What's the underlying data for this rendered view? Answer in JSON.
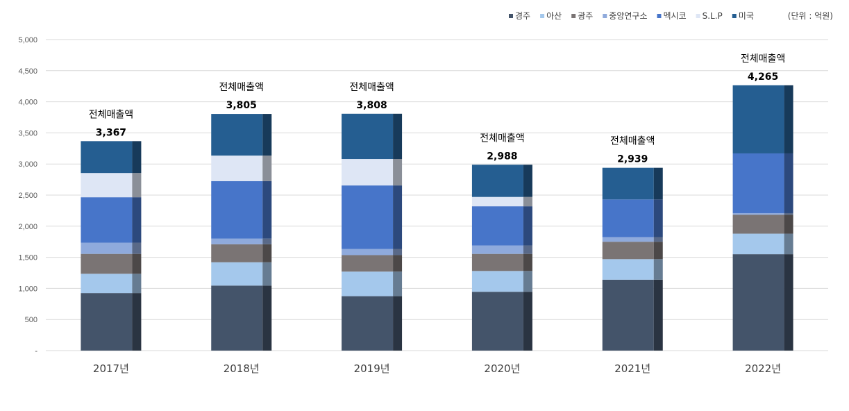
{
  "chart_data": {
    "type": "bar",
    "stacked": true,
    "categories": [
      "2017년",
      "2018년",
      "2019년",
      "2020년",
      "2021년",
      "2022년"
    ],
    "series": [
      {
        "name": "경주",
        "color": "#44546a",
        "values": [
          925,
          1045,
          875,
          945,
          1140,
          1550
        ]
      },
      {
        "name": "아산",
        "color": "#a4c8ec",
        "values": [
          310,
          375,
          395,
          335,
          330,
          330
        ]
      },
      {
        "name": "광주",
        "color": "#7a7474",
        "values": [
          320,
          290,
          265,
          275,
          280,
          305
        ]
      },
      {
        "name": "중앙연구소",
        "color": "#8faadc",
        "values": [
          180,
          90,
          100,
          135,
          75,
          25
        ]
      },
      {
        "name": "멕시코",
        "color": "#4775c9",
        "values": [
          730,
          925,
          1020,
          630,
          605,
          960
        ]
      },
      {
        "name": "S.L.P",
        "color": "#dee6f5",
        "values": [
          390,
          410,
          425,
          150,
          0,
          0
        ]
      },
      {
        "name": "미국",
        "color": "#255e91",
        "values": [
          512,
          670,
          728,
          518,
          509,
          1095
        ]
      }
    ],
    "totals": {
      "label": "전체매출액",
      "values": [
        "3,367",
        "3,805",
        "3,808",
        "2,988",
        "2,939",
        "4,265"
      ]
    },
    "unit_note": "(단위 : 억원)",
    "yticks": [
      "-",
      "500",
      "1,000",
      "1,500",
      "2,000",
      "2,500",
      "3,000",
      "3,500",
      "4,000",
      "4,500",
      "5,000"
    ],
    "ylim": [
      0,
      5000
    ],
    "grid": true,
    "legend": "top-right"
  }
}
